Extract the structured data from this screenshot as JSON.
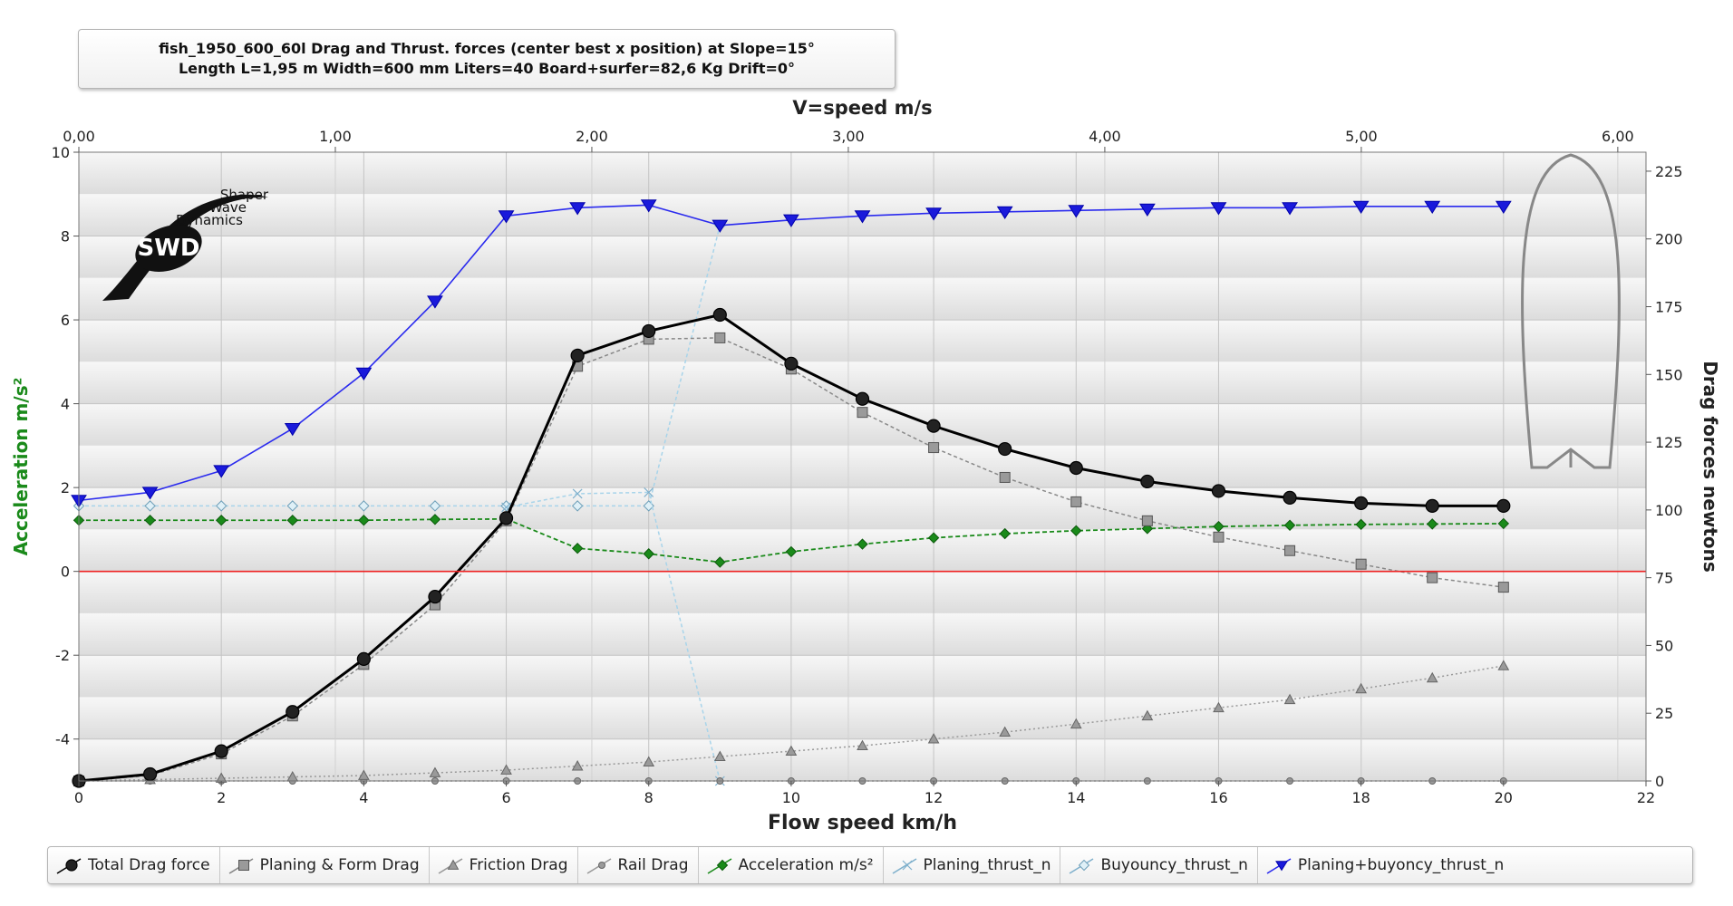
{
  "title": {
    "line1": "fish_1950_600_60l Drag and  Thrust. forces (center best x position) at  Slope=15°",
    "line2": "Length L=1,95 m Width=600 mm Liters=40 Board+surfer=82,6 Kg Drift=0°"
  },
  "logo": {
    "line1": "Shaper",
    "line2": "Wave",
    "line3": "Dynamics",
    "mark": "SWD"
  },
  "colors": {
    "total_drag": "#000000",
    "planing_form": "#888888",
    "friction": "#999999",
    "rail": "#999999",
    "acceleration": "#1a8a1a",
    "planing_thrust": "#a8d4ea",
    "buoyancy_thrust": "#a8d4ea",
    "planing_buoyancy": "#2a2aee",
    "zero_line": "#ee2222"
  },
  "chart_data": {
    "type": "line",
    "title": "fish_1950_600_60l Drag and  Thrust. forces (center best x position) at  Slope=15°",
    "subtitle": "Length L=1,95 m Width=600 mm Liters=40 Board+surfer=82,6 Kg Drift=0°",
    "xlabel": "Flow speed km/h",
    "x2label": "V=speed m/s",
    "ylabel_left": "Acceleration m/s²",
    "ylabel_right": "Drag forces newtons",
    "xlim": [
      0,
      22
    ],
    "x2lim": [
      0,
      6.11
    ],
    "ylim_left": [
      -5,
      10
    ],
    "ylim_right": [
      0,
      232
    ],
    "xticks": [
      "0",
      "2",
      "4",
      "6",
      "8",
      "10",
      "12",
      "14",
      "16",
      "18",
      "20",
      "22"
    ],
    "x2ticks": [
      "0,00",
      "1,00",
      "2,00",
      "3,00",
      "4,00",
      "5,00",
      "6,00"
    ],
    "yticks_left": [
      "-4",
      "-2",
      "0",
      "2",
      "4",
      "6",
      "8",
      "10"
    ],
    "yticks_right": [
      "0",
      "25",
      "50",
      "75",
      "100",
      "125",
      "150",
      "175",
      "200",
      "225"
    ],
    "grid": true,
    "legend_position": "bottom",
    "series": [
      {
        "name": "Total Drag force",
        "axis": "right",
        "x": [
          0,
          1,
          2,
          3,
          4,
          5,
          6,
          7,
          8,
          9,
          10,
          11,
          12,
          13,
          14,
          15,
          16,
          17,
          18,
          19,
          20
        ],
        "values": [
          0,
          2.5,
          11,
          25.5,
          45,
          68,
          97,
          157,
          166,
          172,
          154,
          141,
          131,
          122.5,
          115.5,
          110.5,
          107,
          104.5,
          102.5,
          101.5,
          101.5
        ]
      },
      {
        "name": "Planing & Form Drag",
        "axis": "right",
        "x": [
          0,
          1,
          2,
          3,
          4,
          5,
          6,
          7,
          8,
          9,
          10,
          11,
          12,
          13,
          14,
          15,
          16,
          17,
          18,
          19,
          20
        ],
        "values": [
          0,
          2,
          10,
          24,
          43,
          65,
          96,
          153,
          163,
          163.5,
          152,
          136,
          123,
          112,
          103,
          96,
          90,
          85,
          80,
          75,
          71.5
        ]
      },
      {
        "name": "Friction Drag",
        "axis": "right",
        "x": [
          0,
          1,
          2,
          3,
          4,
          5,
          6,
          7,
          8,
          9,
          10,
          11,
          12,
          13,
          14,
          15,
          16,
          17,
          18,
          19,
          20
        ],
        "values": [
          0,
          0.5,
          1,
          1.5,
          2,
          3,
          4,
          5.5,
          7,
          9,
          11,
          13,
          15.5,
          18,
          21,
          24,
          27,
          30,
          34,
          38,
          42.5
        ]
      },
      {
        "name": "Rail Drag",
        "axis": "right",
        "x": [
          0,
          1,
          2,
          3,
          4,
          5,
          6,
          7,
          8,
          9,
          10,
          11,
          12,
          13,
          14,
          15,
          16,
          17,
          18,
          19,
          20
        ],
        "values": [
          0,
          0,
          0,
          0,
          0,
          0,
          0,
          0,
          0,
          0,
          0,
          0,
          0,
          0,
          0,
          0,
          0,
          0,
          0,
          0,
          0
        ]
      },
      {
        "name": "Acceleration m/s²",
        "axis": "left",
        "x": [
          0,
          1,
          2,
          3,
          4,
          5,
          6,
          7,
          8,
          9,
          10,
          11,
          12,
          13,
          14,
          15,
          16,
          17,
          18,
          19,
          20
        ],
        "values": [
          1.22,
          1.22,
          1.22,
          1.22,
          1.22,
          1.24,
          1.25,
          0.55,
          0.42,
          0.22,
          0.47,
          0.65,
          0.8,
          0.9,
          0.97,
          1.02,
          1.07,
          1.1,
          1.12,
          1.13,
          1.14
        ]
      },
      {
        "name": "Planing_thrust_n",
        "axis": "right",
        "x": [
          6,
          7,
          8,
          9
        ],
        "values": [
          101,
          106,
          106.5,
          0
        ]
      },
      {
        "name": "Buyouncy_thrust_n",
        "axis": "right",
        "x": [
          0,
          1,
          2,
          3,
          4,
          5,
          6,
          7,
          8,
          9
        ],
        "values": [
          101.5,
          101.5,
          101.5,
          101.5,
          101.5,
          101.5,
          101.5,
          101.5,
          101.5,
          205
        ]
      },
      {
        "name": "Planing+buyoncy_thrust_n",
        "axis": "right",
        "x": [
          0,
          1,
          2,
          3,
          4,
          5,
          6,
          7,
          8,
          9,
          10,
          11,
          12,
          13,
          14,
          15,
          16,
          17,
          18,
          19,
          20
        ],
        "values": [
          103.5,
          106.5,
          114.5,
          130,
          150.5,
          177,
          208.5,
          211.5,
          212.5,
          205,
          207,
          208.5,
          209.5,
          210,
          210.5,
          211,
          211.5,
          211.5,
          212,
          212,
          212
        ]
      }
    ]
  }
}
